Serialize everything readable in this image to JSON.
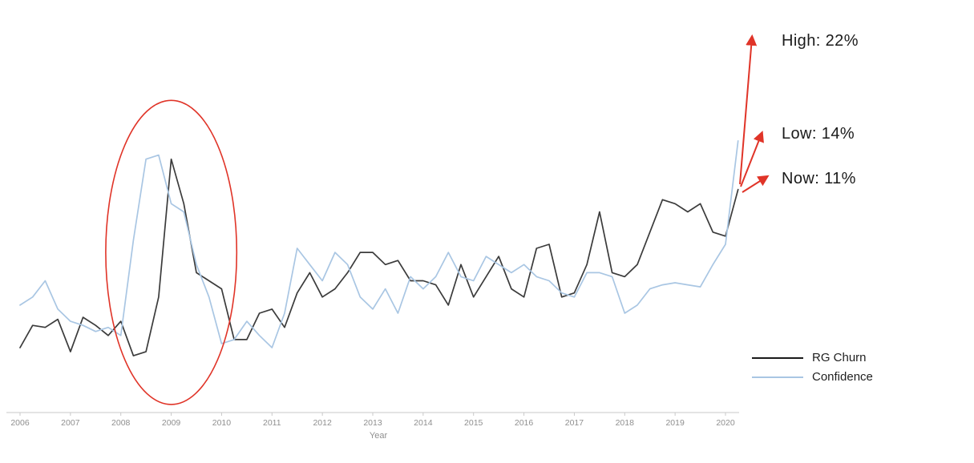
{
  "page": {
    "background": "#ffffff"
  },
  "chart_data": {
    "type": "line",
    "title": "",
    "xlabel": "Year",
    "ylabel": "",
    "grid": false,
    "legend_position": "lower right",
    "x_ticks": [
      2006,
      2007,
      2008,
      2009,
      2010,
      2011,
      2012,
      2013,
      2014,
      2015,
      2016,
      2017,
      2018,
      2019,
      2020
    ],
    "ylim": [
      0,
      19.6
    ],
    "x": [
      2006,
      2006.25,
      2006.5,
      2006.75,
      2007,
      2007.25,
      2007.5,
      2007.75,
      2008,
      2008.25,
      2008.5,
      2008.75,
      2009,
      2009.25,
      2009.5,
      2009.75,
      2010,
      2010.25,
      2010.5,
      2010.75,
      2011,
      2011.25,
      2011.5,
      2011.75,
      2012,
      2012.25,
      2012.5,
      2012.75,
      2013,
      2013.25,
      2013.5,
      2013.75,
      2014,
      2014.25,
      2014.5,
      2014.75,
      2015,
      2015.25,
      2015.5,
      2015.75,
      2016,
      2016.25,
      2016.5,
      2016.75,
      2017,
      2017.25,
      2017.5,
      2017.75,
      2018,
      2018.25,
      2018.5,
      2018.75,
      2019,
      2019.25,
      2019.5,
      2019.75,
      2020,
      2020.25
    ],
    "series": [
      {
        "name": "RG Churn",
        "color": "#3b3b3b",
        "values": [
          3.2,
          4.3,
          4.2,
          4.6,
          3.0,
          4.7,
          4.3,
          3.8,
          4.5,
          2.8,
          3.0,
          5.7,
          12.5,
          10.3,
          6.9,
          6.5,
          6.1,
          3.6,
          3.6,
          4.9,
          5.1,
          4.2,
          5.9,
          6.9,
          5.7,
          6.1,
          6.9,
          7.9,
          7.9,
          7.3,
          7.5,
          6.5,
          6.5,
          6.3,
          5.3,
          7.3,
          5.7,
          6.7,
          7.7,
          6.1,
          5.7,
          8.1,
          8.3,
          5.7,
          5.9,
          7.3,
          9.9,
          6.9,
          6.7,
          7.3,
          8.9,
          10.5,
          10.3,
          9.9,
          10.3,
          8.9,
          8.7,
          11.0
        ]
      },
      {
        "name": "Confidence",
        "color": "#a9c6e3",
        "values": [
          5.3,
          5.7,
          6.5,
          5.1,
          4.5,
          4.3,
          4.0,
          4.2,
          3.8,
          8.5,
          12.5,
          12.7,
          10.3,
          9.9,
          7.3,
          5.7,
          3.4,
          3.6,
          4.5,
          3.8,
          3.2,
          4.9,
          8.1,
          7.3,
          6.5,
          7.9,
          7.3,
          5.7,
          5.1,
          6.1,
          4.9,
          6.7,
          6.1,
          6.7,
          7.9,
          6.7,
          6.5,
          7.7,
          7.3,
          6.9,
          7.3,
          6.7,
          6.5,
          5.9,
          5.7,
          6.9,
          6.9,
          6.7,
          4.9,
          5.3,
          6.1,
          6.3,
          6.4,
          6.3,
          6.2,
          7.3,
          8.3,
          13.4
        ]
      }
    ],
    "annotation_color": "#e03428",
    "annotations": [
      {
        "id": "high",
        "text": "High: 22%",
        "value_pct": 22
      },
      {
        "id": "low",
        "text": "Low: 14%",
        "value_pct": 14
      },
      {
        "id": "now",
        "text": "Now: 11%",
        "value_pct": 11
      }
    ],
    "highlight_ellipse": {
      "cx": 2009.0,
      "cy": 7.9,
      "rx_years": 1.3,
      "ry_units": 7.5
    },
    "axis_color": "#c8c8c8",
    "tick_label_color": "#8f8f8f"
  }
}
